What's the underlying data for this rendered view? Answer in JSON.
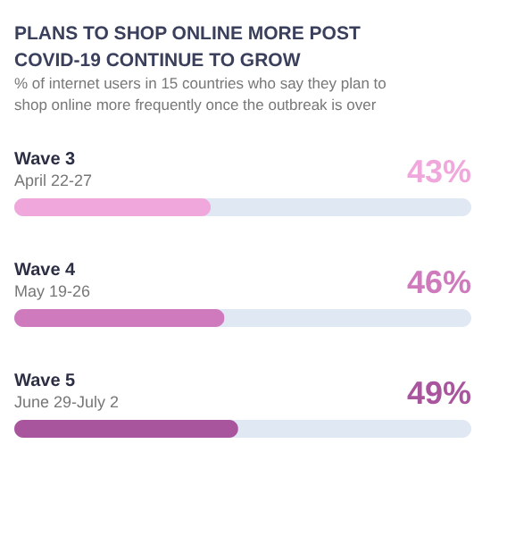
{
  "chart_data": {
    "type": "bar",
    "orientation": "horizontal",
    "title": "PLANS TO SHOP ONLINE MORE POST COVID-19 CONTINUE TO GROW",
    "subtitle": "% of internet users in 15 countries who say they plan to shop online more frequently once the outbreak is over",
    "categories": [
      "Wave 3\nApril 22-27",
      "Wave 4\nMay 19-26",
      "Wave 5\nJune 29-July 2"
    ],
    "values": [
      43,
      46,
      49
    ],
    "colors": [
      "#f0a8dc",
      "#cf7abd",
      "#a9559e"
    ],
    "value_labels": [
      "43%",
      "46%",
      "49%"
    ],
    "xlim": [
      0,
      100
    ]
  }
}
